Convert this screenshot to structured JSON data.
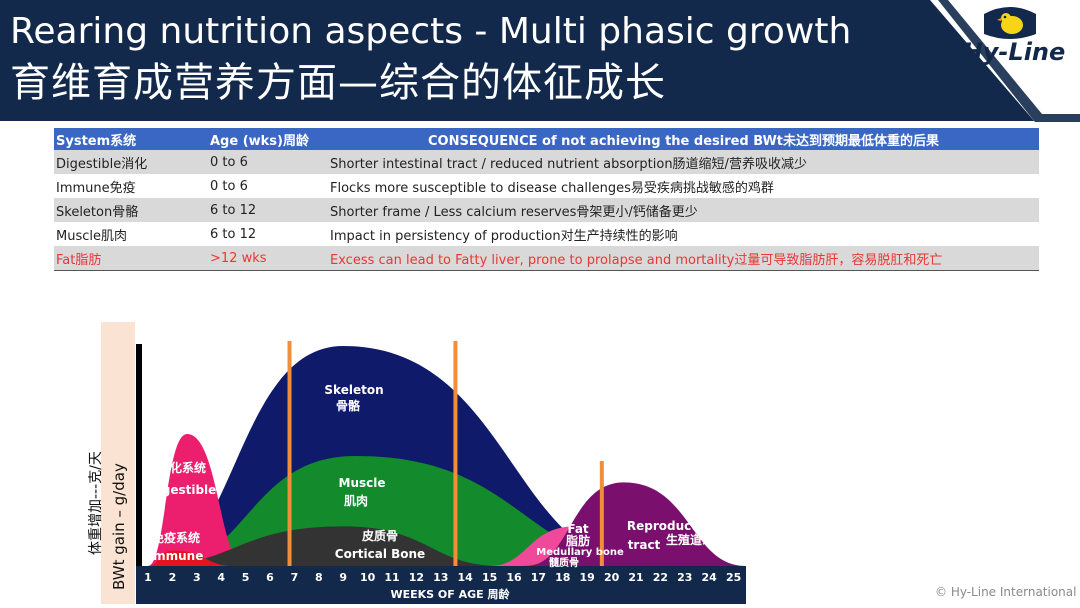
{
  "slide": {
    "title_en": "Rearing nutrition aspects - Multi phasic growth",
    "title_cn": "育维育成营养方面—综合的体征成长",
    "logo_text": "Hy-Line",
    "copyright": "© Hy-Line International"
  },
  "colors": {
    "header_bg": "#13294b",
    "table_header": "#3a66c4",
    "digestible": "#ec1e6e",
    "skeleton": "#0f1a6b",
    "muscle": "#138a2b",
    "cortical": "#333333",
    "immune": "#e4141d",
    "fat": "#f0499a",
    "medullary": "#e84530",
    "reproductive": "#7a0f6e",
    "markers": "#f08e3a"
  },
  "table": {
    "headers": [
      "System系统",
      "Age (wks)周龄",
      "CONSEQUENCE of not achieving the desired BWt未达到预期最低体重的后果"
    ],
    "rows": [
      [
        "Digestible消化",
        "0 to 6",
        "Shorter intestinal tract / reduced nutrient absorption肠道缩短/营养吸收减少"
      ],
      [
        "Immune免疫",
        "0 to 6",
        "Flocks more susceptible to disease challenges易受疾病挑战敏感的鸡群"
      ],
      [
        "Skeleton骨骼",
        "6 to 12",
        "Shorter frame / Less calcium reserves骨架更小/钙储备更少"
      ],
      [
        "Muscle肌肉",
        "6 to 12",
        "Impact in persistency of production对生产持续性的影响"
      ],
      [
        "Fat脂肪",
        ">12 wks",
        "Excess can lead to Fatty liver, prone to prolapse and mortality过量可导致脂肪肝，容易脱肛和死亡"
      ]
    ]
  },
  "chart_data": {
    "type": "area",
    "x": [
      1,
      2,
      3,
      4,
      5,
      6,
      7,
      8,
      9,
      10,
      11,
      12,
      13,
      14,
      15,
      16,
      17,
      18,
      19,
      20,
      21,
      22,
      23,
      24,
      25
    ],
    "xlabel": "WEEKS OF AGE 周龄",
    "ylabel_en": "BWt gain – g/day",
    "ylabel_cn": "体重增加---克/天",
    "marker_weeks": [
      6.8,
      13.6,
      19.6
    ],
    "curves": [
      {
        "label": "Skeleton",
        "label_cn": "骨骼",
        "start": 1,
        "end": 21.5,
        "peak_week": 9,
        "peak": 100
      },
      {
        "label": "Muscle",
        "label_cn": "肌肉",
        "start": 1.5,
        "end": 22,
        "peak_week": 9.5,
        "peak": 50
      },
      {
        "label": "Digestible",
        "label_cn": "消化系统",
        "start": 1,
        "end": 5,
        "peak_week": 2.6,
        "peak": 60
      },
      {
        "label": "Cortical Bone",
        "label_cn": "皮质骨",
        "start": 1,
        "end": 15.5,
        "peak_week": 9,
        "peak": 18
      },
      {
        "label": "Immune",
        "label_cn": "免疫系统",
        "start": 1,
        "end": 4.5,
        "peak_week": 2,
        "peak": 7
      },
      {
        "label": "Fat",
        "label_cn": "脂肪",
        "start": 15,
        "end": 22,
        "peak_week": 18.5,
        "peak": 18
      },
      {
        "label": "Medullary bone",
        "label_cn": "髓质骨",
        "start": 16,
        "end": 25,
        "peak_week": 19.8,
        "peak": 8
      },
      {
        "label": "Reproductive tract",
        "label_cn": "生殖道系统",
        "start": 16.5,
        "end": 25.5,
        "peak_week": 20.5,
        "peak": 38
      }
    ]
  }
}
